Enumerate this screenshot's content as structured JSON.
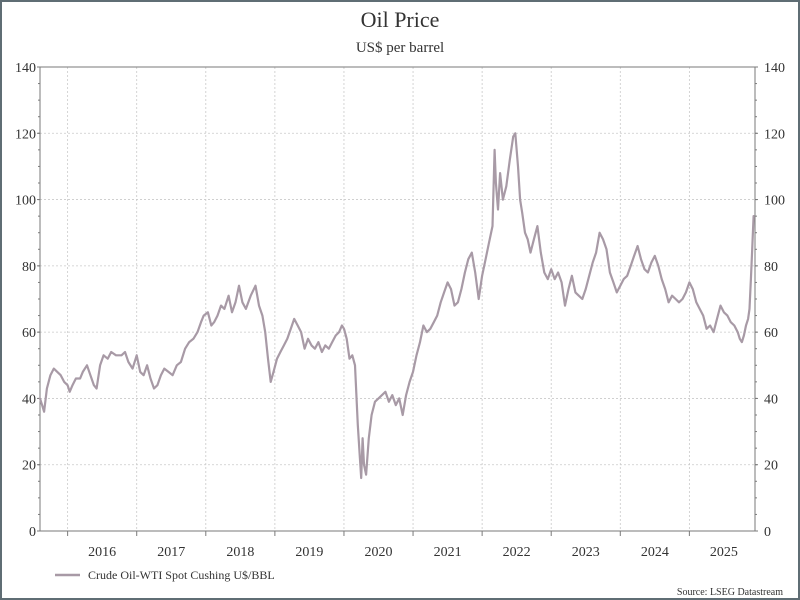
{
  "chart_data": {
    "type": "line",
    "title": "Oil Price",
    "subtitle": "US$ per barrel",
    "ylim": [
      0,
      140
    ],
    "yticks": [
      0,
      20,
      40,
      60,
      80,
      100,
      120,
      140
    ],
    "xlim": [
      2015.6,
      2025.95
    ],
    "year_labels": [
      "2016",
      "2017",
      "2018",
      "2019",
      "2020",
      "2021",
      "2022",
      "2023",
      "2024",
      "2025"
    ],
    "year_starts": [
      2016,
      2017,
      2018,
      2019,
      2020,
      2021,
      2022,
      2023,
      2024,
      2025
    ],
    "grid": true,
    "legend_position": "bottom-left",
    "source": "Source: LSEG Datastream",
    "series": [
      {
        "name": "Crude Oil-WTI Spot Cushing U$/BBL",
        "color": "#a89aa6",
        "points": [
          [
            2015.6,
            40
          ],
          [
            2015.63,
            38
          ],
          [
            2015.66,
            36
          ],
          [
            2015.7,
            43
          ],
          [
            2015.75,
            47
          ],
          [
            2015.8,
            49
          ],
          [
            2015.85,
            48
          ],
          [
            2015.9,
            47
          ],
          [
            2015.95,
            45
          ],
          [
            2016.0,
            44
          ],
          [
            2016.03,
            42
          ],
          [
            2016.07,
            44
          ],
          [
            2016.12,
            46
          ],
          [
            2016.18,
            46
          ],
          [
            2016.22,
            48
          ],
          [
            2016.28,
            50
          ],
          [
            2016.33,
            47
          ],
          [
            2016.38,
            44
          ],
          [
            2016.42,
            43
          ],
          [
            2016.47,
            50
          ],
          [
            2016.52,
            53
          ],
          [
            2016.58,
            52
          ],
          [
            2016.63,
            54
          ],
          [
            2016.7,
            53
          ],
          [
            2016.78,
            53
          ],
          [
            2016.83,
            54
          ],
          [
            2016.88,
            51
          ],
          [
            2016.94,
            49
          ],
          [
            2017.0,
            53
          ],
          [
            2017.05,
            48
          ],
          [
            2017.1,
            47
          ],
          [
            2017.15,
            50
          ],
          [
            2017.2,
            46
          ],
          [
            2017.25,
            43
          ],
          [
            2017.3,
            44
          ],
          [
            2017.35,
            47
          ],
          [
            2017.4,
            49
          ],
          [
            2017.46,
            48
          ],
          [
            2017.52,
            47
          ],
          [
            2017.58,
            50
          ],
          [
            2017.64,
            51
          ],
          [
            2017.7,
            55
          ],
          [
            2017.76,
            57
          ],
          [
            2017.82,
            58
          ],
          [
            2017.88,
            60
          ],
          [
            2017.93,
            63
          ],
          [
            2017.97,
            65
          ],
          [
            2018.03,
            66
          ],
          [
            2018.08,
            62
          ],
          [
            2018.12,
            63
          ],
          [
            2018.17,
            65
          ],
          [
            2018.22,
            68
          ],
          [
            2018.27,
            67
          ],
          [
            2018.33,
            71
          ],
          [
            2018.38,
            66
          ],
          [
            2018.43,
            69
          ],
          [
            2018.48,
            74
          ],
          [
            2018.53,
            69
          ],
          [
            2018.58,
            67
          ],
          [
            2018.65,
            71
          ],
          [
            2018.72,
            74
          ],
          [
            2018.77,
            68
          ],
          [
            2018.82,
            65
          ],
          [
            2018.86,
            60
          ],
          [
            2018.9,
            52
          ],
          [
            2018.94,
            45
          ],
          [
            2018.98,
            48
          ],
          [
            2019.03,
            52
          ],
          [
            2019.08,
            54
          ],
          [
            2019.13,
            56
          ],
          [
            2019.18,
            58
          ],
          [
            2019.23,
            61
          ],
          [
            2019.28,
            64
          ],
          [
            2019.33,
            62
          ],
          [
            2019.38,
            60
          ],
          [
            2019.43,
            55
          ],
          [
            2019.48,
            58
          ],
          [
            2019.53,
            56
          ],
          [
            2019.58,
            55
          ],
          [
            2019.63,
            57
          ],
          [
            2019.68,
            54
          ],
          [
            2019.73,
            56
          ],
          [
            2019.78,
            55
          ],
          [
            2019.83,
            57
          ],
          [
            2019.88,
            59
          ],
          [
            2019.93,
            60
          ],
          [
            2019.97,
            62
          ],
          [
            2020.0,
            61
          ],
          [
            2020.04,
            58
          ],
          [
            2020.08,
            52
          ],
          [
            2020.12,
            53
          ],
          [
            2020.16,
            50
          ],
          [
            2020.2,
            32
          ],
          [
            2020.23,
            22
          ],
          [
            2020.25,
            16
          ],
          [
            2020.27,
            28
          ],
          [
            2020.29,
            20
          ],
          [
            2020.32,
            17
          ],
          [
            2020.36,
            28
          ],
          [
            2020.4,
            35
          ],
          [
            2020.45,
            39
          ],
          [
            2020.5,
            40
          ],
          [
            2020.55,
            41
          ],
          [
            2020.6,
            42
          ],
          [
            2020.65,
            39
          ],
          [
            2020.7,
            41
          ],
          [
            2020.75,
            38
          ],
          [
            2020.8,
            40
          ],
          [
            2020.85,
            35
          ],
          [
            2020.9,
            41
          ],
          [
            2020.95,
            45
          ],
          [
            2021.0,
            48
          ],
          [
            2021.05,
            53
          ],
          [
            2021.1,
            57
          ],
          [
            2021.15,
            62
          ],
          [
            2021.2,
            60
          ],
          [
            2021.25,
            61
          ],
          [
            2021.3,
            63
          ],
          [
            2021.35,
            65
          ],
          [
            2021.4,
            69
          ],
          [
            2021.45,
            72
          ],
          [
            2021.5,
            75
          ],
          [
            2021.55,
            73
          ],
          [
            2021.6,
            68
          ],
          [
            2021.65,
            69
          ],
          [
            2021.7,
            73
          ],
          [
            2021.75,
            78
          ],
          [
            2021.8,
            82
          ],
          [
            2021.85,
            84
          ],
          [
            2021.9,
            78
          ],
          [
            2021.95,
            70
          ],
          [
            2022.0,
            77
          ],
          [
            2022.05,
            82
          ],
          [
            2022.1,
            87
          ],
          [
            2022.15,
            92
          ],
          [
            2022.18,
            115
          ],
          [
            2022.2,
            105
          ],
          [
            2022.23,
            97
          ],
          [
            2022.26,
            108
          ],
          [
            2022.3,
            100
          ],
          [
            2022.35,
            104
          ],
          [
            2022.4,
            112
          ],
          [
            2022.45,
            119
          ],
          [
            2022.48,
            120
          ],
          [
            2022.52,
            110
          ],
          [
            2022.55,
            100
          ],
          [
            2022.58,
            96
          ],
          [
            2022.62,
            90
          ],
          [
            2022.66,
            88
          ],
          [
            2022.7,
            84
          ],
          [
            2022.75,
            88
          ],
          [
            2022.8,
            92
          ],
          [
            2022.85,
            84
          ],
          [
            2022.9,
            78
          ],
          [
            2022.95,
            76
          ],
          [
            2023.0,
            79
          ],
          [
            2023.05,
            76
          ],
          [
            2023.1,
            78
          ],
          [
            2023.15,
            75
          ],
          [
            2023.2,
            68
          ],
          [
            2023.25,
            73
          ],
          [
            2023.3,
            77
          ],
          [
            2023.35,
            72
          ],
          [
            2023.4,
            71
          ],
          [
            2023.45,
            70
          ],
          [
            2023.5,
            73
          ],
          [
            2023.55,
            77
          ],
          [
            2023.6,
            81
          ],
          [
            2023.65,
            84
          ],
          [
            2023.7,
            90
          ],
          [
            2023.75,
            88
          ],
          [
            2023.8,
            85
          ],
          [
            2023.85,
            78
          ],
          [
            2023.9,
            75
          ],
          [
            2023.95,
            72
          ],
          [
            2024.0,
            74
          ],
          [
            2024.05,
            76
          ],
          [
            2024.1,
            77
          ],
          [
            2024.15,
            80
          ],
          [
            2024.2,
            83
          ],
          [
            2024.25,
            86
          ],
          [
            2024.3,
            82
          ],
          [
            2024.35,
            79
          ],
          [
            2024.4,
            78
          ],
          [
            2024.45,
            81
          ],
          [
            2024.5,
            83
          ],
          [
            2024.55,
            80
          ],
          [
            2024.6,
            76
          ],
          [
            2024.65,
            73
          ],
          [
            2024.7,
            69
          ],
          [
            2024.75,
            71
          ],
          [
            2024.8,
            70
          ],
          [
            2024.85,
            69
          ],
          [
            2024.9,
            70
          ],
          [
            2024.95,
            72
          ],
          [
            2025.0,
            75
          ],
          [
            2025.05,
            73
          ],
          [
            2025.1,
            69
          ],
          [
            2025.15,
            67
          ],
          [
            2025.2,
            65
          ],
          [
            2025.25,
            61
          ],
          [
            2025.3,
            62
          ],
          [
            2025.35,
            60
          ],
          [
            2025.4,
            64
          ],
          [
            2025.45,
            68
          ],
          [
            2025.5,
            66
          ],
          [
            2025.55,
            65
          ],
          [
            2025.6,
            63
          ],
          [
            2025.65,
            62
          ],
          [
            2025.7,
            60
          ],
          [
            2025.73,
            58
          ],
          [
            2025.76,
            57
          ],
          [
            2025.79,
            59
          ],
          [
            2025.82,
            62
          ],
          [
            2025.85,
            64
          ],
          [
            2025.87,
            67
          ],
          [
            2025.89,
            76
          ],
          [
            2025.91,
            85
          ],
          [
            2025.93,
            95
          ]
        ]
      }
    ]
  }
}
